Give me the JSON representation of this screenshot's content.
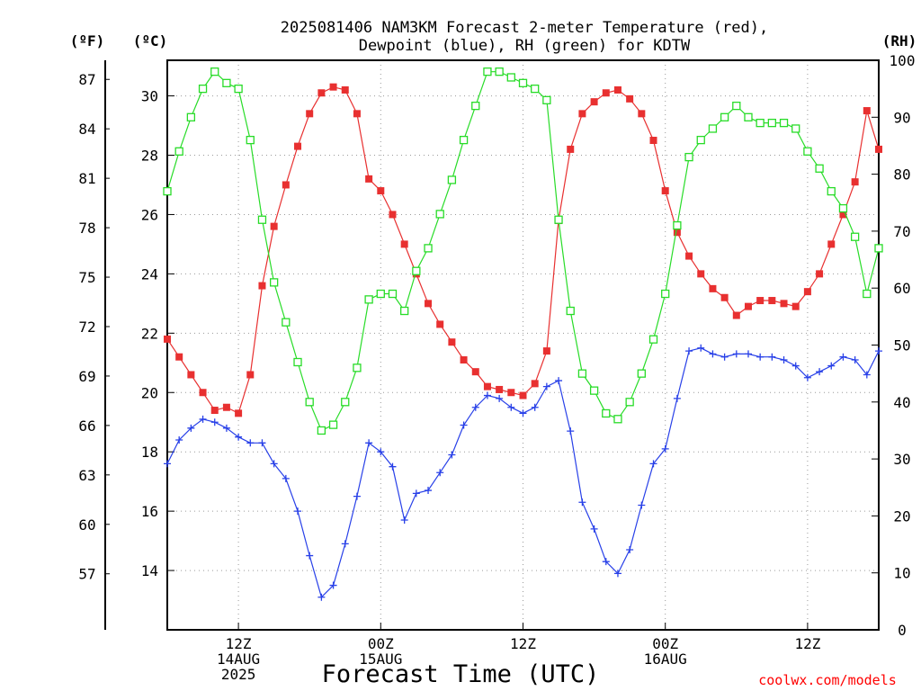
{
  "header": {
    "title_line1": "2025081406 NAM3KM Forecast 2-meter Temperature (red),",
    "title_line2": "Dewpoint (blue), RH (green) for KDTW"
  },
  "units": {
    "f": "(ºF)",
    "c": "(ºC)",
    "rh": "(RH)"
  },
  "footer": {
    "credit": "coolwx.com/models"
  },
  "chart_data": {
    "type": "line",
    "title": "2025081406 NAM3KM Forecast 2-meter Temperature (red), Dewpoint (blue), RH (green) for KDTW",
    "xlabel": "Forecast Time (UTC)",
    "x_start_hour_utc": "2025-08-14 06Z",
    "x_step_hours": 1,
    "x_count": 61,
    "xlim_hours": [
      0,
      60
    ],
    "grid": true,
    "x_ticks": [
      {
        "hour": 6,
        "lines": [
          "12Z",
          "14AUG",
          "2025"
        ]
      },
      {
        "hour": 18,
        "lines": [
          "00Z",
          "15AUG"
        ]
      },
      {
        "hour": 30,
        "lines": [
          "12Z"
        ]
      },
      {
        "hour": 42,
        "lines": [
          "00Z",
          "16AUG"
        ]
      },
      {
        "hour": 54,
        "lines": [
          "12Z"
        ]
      }
    ],
    "y_left_celsius": {
      "label": "(ºC)",
      "ylim": [
        12,
        31.2
      ],
      "ticks": [
        14,
        16,
        18,
        20,
        22,
        24,
        26,
        28,
        30
      ]
    },
    "y_left_fahrenheit": {
      "label": "(ºF)",
      "ticks": [
        57,
        60,
        63,
        66,
        69,
        72,
        75,
        78,
        81,
        84,
        87
      ]
    },
    "y_right_rh": {
      "label": "(RH)",
      "ylim": [
        0,
        100
      ],
      "ticks": [
        0,
        10,
        20,
        30,
        40,
        50,
        60,
        70,
        80,
        90,
        100
      ]
    },
    "series": [
      {
        "name": "Temperature",
        "axis": "celsius",
        "color": "#e83030",
        "marker": "filled-square",
        "values": [
          21.8,
          21.2,
          20.6,
          20.0,
          19.4,
          19.5,
          19.3,
          20.6,
          23.6,
          25.6,
          27.0,
          28.3,
          29.4,
          30.1,
          30.3,
          30.2,
          29.4,
          27.2,
          26.8,
          26.0,
          25.0,
          24.0,
          23.0,
          22.3,
          21.7,
          21.1,
          20.7,
          20.2,
          20.1,
          20.0,
          19.9,
          20.3,
          21.4,
          25.8,
          28.2,
          29.4,
          29.8,
          30.1,
          30.2,
          29.9,
          29.4,
          28.5,
          26.8,
          25.4,
          24.6,
          24.0,
          23.5,
          23.2,
          22.6,
          22.9,
          23.1,
          23.1,
          23.0,
          22.9,
          23.4,
          24.0,
          25.0,
          26.0,
          27.1,
          29.5,
          28.2
        ]
      },
      {
        "name": "Dewpoint",
        "axis": "celsius",
        "color": "#2840e8",
        "marker": "plus",
        "values": [
          17.6,
          18.4,
          18.8,
          19.1,
          19.0,
          18.8,
          18.5,
          18.3,
          18.3,
          17.6,
          17.1,
          16.0,
          14.5,
          13.1,
          13.5,
          14.9,
          16.5,
          18.3,
          18.0,
          17.5,
          15.7,
          16.6,
          16.7,
          17.3,
          17.9,
          18.9,
          19.5,
          19.9,
          19.8,
          19.5,
          19.3,
          19.5,
          20.2,
          20.4,
          18.7,
          16.3,
          15.4,
          14.3,
          13.9,
          14.7,
          16.2,
          17.6,
          18.1,
          19.8,
          21.4,
          21.5,
          21.3,
          21.2,
          21.3,
          21.3,
          21.2,
          21.2,
          21.1,
          20.9,
          20.5,
          20.7,
          20.9,
          21.2,
          21.1,
          20.6,
          21.4
        ]
      },
      {
        "name": "RH",
        "axis": "rh",
        "color": "#28dc28",
        "marker": "open-square",
        "values": [
          77,
          84,
          90,
          95,
          98,
          96,
          95,
          86,
          72,
          61,
          54,
          47,
          40,
          35,
          36,
          40,
          46,
          58,
          59,
          59,
          56,
          63,
          67,
          73,
          79,
          86,
          92,
          98,
          98,
          97,
          96,
          95,
          93,
          72,
          56,
          45,
          42,
          38,
          37,
          40,
          45,
          51,
          59,
          71,
          83,
          86,
          88,
          90,
          92,
          90,
          89,
          89,
          89,
          88,
          84,
          81,
          77,
          74,
          69,
          59,
          67
        ]
      }
    ]
  }
}
